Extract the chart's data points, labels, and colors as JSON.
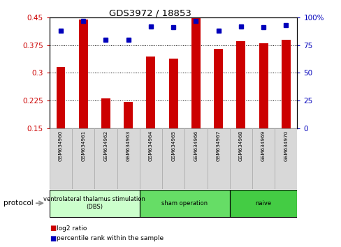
{
  "title": "GDS3972 / 18853",
  "categories": [
    "GSM634960",
    "GSM634961",
    "GSM634962",
    "GSM634963",
    "GSM634964",
    "GSM634965",
    "GSM634966",
    "GSM634967",
    "GSM634968",
    "GSM634969",
    "GSM634970"
  ],
  "bar_values": [
    0.315,
    0.443,
    0.232,
    0.222,
    0.345,
    0.338,
    0.448,
    0.365,
    0.385,
    0.38,
    0.39
  ],
  "percentile_values": [
    88,
    97,
    80,
    80,
    92,
    91,
    97,
    88,
    92,
    91,
    93
  ],
  "bar_color": "#cc0000",
  "dot_color": "#0000bb",
  "ylim_left": [
    0.15,
    0.45
  ],
  "ylim_right": [
    0,
    100
  ],
  "yticks_left": [
    0.15,
    0.225,
    0.3,
    0.375,
    0.45
  ],
  "yticks_right": [
    0,
    25,
    50,
    75,
    100
  ],
  "ytick_labels_left": [
    "0.15",
    "0.225",
    "0.3",
    "0.375",
    "0.45"
  ],
  "ytick_labels_right": [
    "0",
    "25",
    "50",
    "75",
    "100%"
  ],
  "grid_lines": [
    0.225,
    0.3,
    0.375
  ],
  "protocol_groups": [
    {
      "label": "ventrolateral thalamus stimulation\n(DBS)",
      "start": 0,
      "end": 3,
      "color": "#ccffcc"
    },
    {
      "label": "sham operation",
      "start": 4,
      "end": 7,
      "color": "#66dd66"
    },
    {
      "label": "naive",
      "start": 8,
      "end": 10,
      "color": "#44cc44"
    }
  ],
  "legend_items": [
    {
      "color": "#cc0000",
      "label": "log2 ratio"
    },
    {
      "color": "#0000bb",
      "label": "percentile rank within the sample"
    }
  ],
  "protocol_label": "protocol",
  "background_color": "#ffffff",
  "plot_background": "#ffffff",
  "bar_width": 0.4,
  "tick_label_color_left": "#cc0000",
  "tick_label_color_right": "#0000bb",
  "label_box_color": "#d8d8d8",
  "label_box_border": "#aaaaaa"
}
